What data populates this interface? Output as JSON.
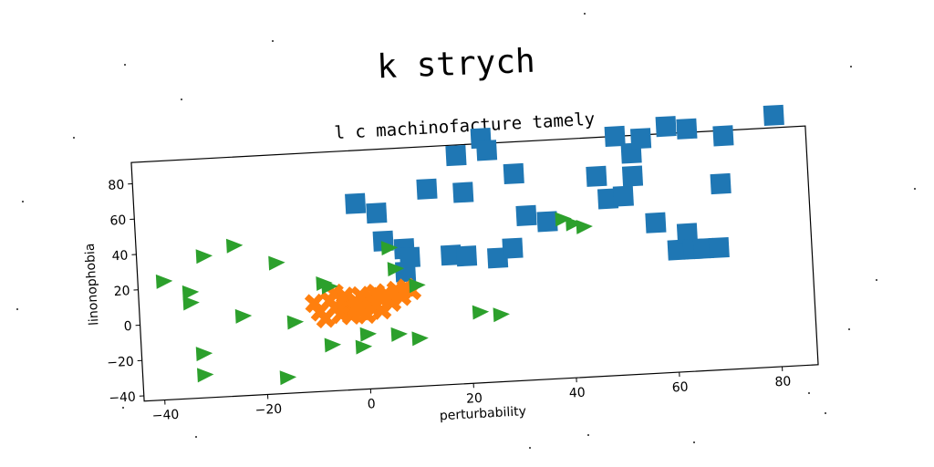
{
  "chart_data": {
    "type": "scatter",
    "suptitle": "k strych",
    "title": "l c machinofacture tamely",
    "xlabel": "perturbability",
    "ylabel": "linonophobia",
    "xlim": [
      -44,
      87
    ],
    "ylim": [
      -43,
      92
    ],
    "xticks": [
      -40,
      -20,
      0,
      20,
      40,
      60,
      80
    ],
    "yticks": [
      -40,
      -20,
      0,
      20,
      40,
      60,
      80
    ],
    "xtick_labels": [
      "−40",
      "−20",
      "0",
      "20",
      "40",
      "60",
      "80"
    ],
    "ytick_labels": [
      "−40",
      "−20",
      "0",
      "20",
      "40",
      "60",
      "80"
    ],
    "grid": false,
    "legend": "none",
    "series": [
      {
        "marker": "square",
        "color": "#1f77b4",
        "points": [
          [
            -1,
            62
          ],
          [
            3,
            56
          ],
          [
            4,
            40
          ],
          [
            8,
            35
          ],
          [
            8,
            22
          ],
          [
            9,
            30
          ],
          [
            13,
            68
          ],
          [
            17,
            30
          ],
          [
            19,
            86
          ],
          [
            20,
            65
          ],
          [
            20,
            29
          ],
          [
            24,
            95
          ],
          [
            25,
            88
          ],
          [
            26,
            27
          ],
          [
            30,
            74
          ],
          [
            29,
            32
          ],
          [
            32,
            50
          ],
          [
            36,
            46
          ],
          [
            46,
            70
          ],
          [
            48,
            57
          ],
          [
            51,
            58
          ],
          [
            50,
            92
          ],
          [
            53,
            82
          ],
          [
            53,
            69
          ],
          [
            55,
            90
          ],
          [
            57,
            42
          ],
          [
            60,
            96
          ],
          [
            61,
            26
          ],
          [
            63,
            35
          ],
          [
            64,
            26
          ],
          [
            64,
            94
          ],
          [
            66,
            26
          ],
          [
            69,
            26
          ],
          [
            70,
            62
          ],
          [
            71,
            89
          ],
          [
            81,
            99
          ]
        ]
      },
      {
        "marker": "x",
        "color": "#ff7f0e",
        "points": [
          [
            -10,
            7
          ],
          [
            -9,
            2
          ],
          [
            -8,
            -2
          ],
          [
            -7,
            8
          ],
          [
            -6,
            4
          ],
          [
            -6,
            12
          ],
          [
            -5,
            0
          ],
          [
            -4,
            5
          ],
          [
            -4,
            10
          ],
          [
            -3,
            -1
          ],
          [
            -2,
            7
          ],
          [
            -2,
            3
          ],
          [
            -1,
            10
          ],
          [
            -1,
            1
          ],
          [
            0,
            6
          ],
          [
            0,
            -1
          ],
          [
            1,
            9
          ],
          [
            1,
            3
          ],
          [
            2,
            4
          ],
          [
            2,
            11
          ],
          [
            3,
            7
          ],
          [
            3,
            1
          ],
          [
            4,
            10
          ],
          [
            5,
            5
          ],
          [
            6,
            12
          ],
          [
            7,
            8
          ],
          [
            8,
            13
          ],
          [
            9,
            11
          ]
        ]
      },
      {
        "marker": "triangle-right",
        "color": "#2ca02c",
        "points": [
          [
            -39,
            24
          ],
          [
            -34,
            17
          ],
          [
            -34,
            11
          ],
          [
            -32,
            -18
          ],
          [
            -32,
            -30
          ],
          [
            -31,
            37
          ],
          [
            -25,
            42
          ],
          [
            -24,
            2
          ],
          [
            -17,
            31
          ],
          [
            -16,
            -34
          ],
          [
            -14,
            -3
          ],
          [
            -8,
            18
          ],
          [
            -7,
            16
          ],
          [
            -7,
            -17
          ],
          [
            -1,
            -19
          ],
          [
            0,
            -12
          ],
          [
            5,
            36
          ],
          [
            6,
            24
          ],
          [
            6,
            -13
          ],
          [
            10,
            -16
          ],
          [
            10,
            14
          ],
          [
            22,
            -3
          ],
          [
            26,
            -5
          ],
          [
            39,
            47
          ],
          [
            41,
            44
          ],
          [
            43,
            42
          ]
        ]
      }
    ]
  }
}
